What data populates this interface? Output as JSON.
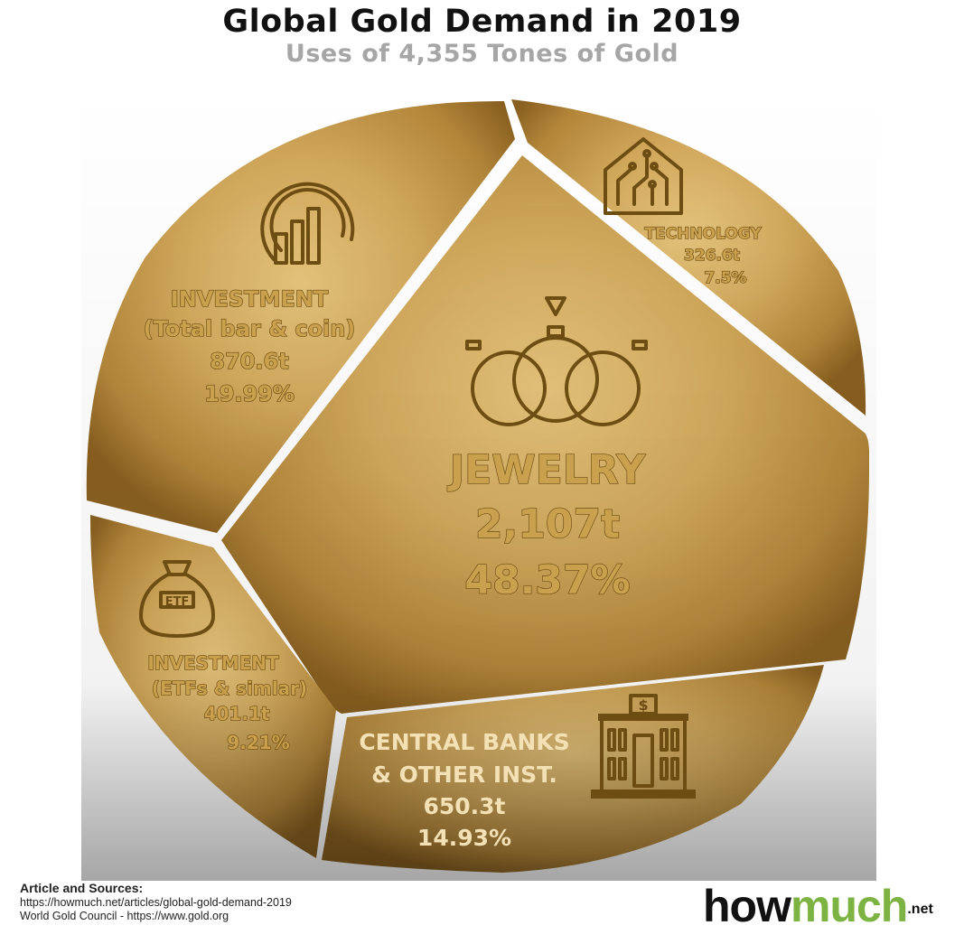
{
  "header": {
    "title": "Global Gold Demand in 2019",
    "subtitle": "Uses of 4,355 Tones of Gold"
  },
  "chart_data": {
    "type": "pie",
    "total": "4,355",
    "unit": "Tones",
    "slices": [
      {
        "id": "jewelry",
        "lines": [
          "JEWELRY",
          "2,107t",
          "48.37%"
        ],
        "tonnes": 2107,
        "percent": 48.37,
        "icon": "rings-icon"
      },
      {
        "id": "investment-bar-coin",
        "lines": [
          "INVESTMENT",
          "(Total bar & coin)",
          "870.6t",
          "19.99%"
        ],
        "tonnes": 870.6,
        "percent": 19.99,
        "icon": "growth-chart-icon"
      },
      {
        "id": "central-banks",
        "lines": [
          "CENTRAL BANKS",
          "& OTHER INST.",
          "650.3t",
          "14.93%"
        ],
        "tonnes": 650.3,
        "percent": 14.93,
        "icon": "bank-building-icon"
      },
      {
        "id": "investment-etf",
        "lines": [
          "INVESTMENT",
          "(ETFs & simlar)",
          "401.1t",
          "9.21%"
        ],
        "tonnes": 401.1,
        "percent": 9.21,
        "icon": "money-bag-icon",
        "icon_text": "ETF"
      },
      {
        "id": "technology",
        "lines": [
          "TECHNOLOGY",
          "326.6t",
          "7.5%"
        ],
        "tonnes": 326.6,
        "percent": 7.5,
        "icon": "circuit-house-icon"
      }
    ],
    "colors": {
      "gold_light": "#d9b76a",
      "gold_mid": "#b8893a",
      "gold_dark": "#7a5418",
      "text_fill": "#c9a04e",
      "text_stroke": "#6e4d12"
    }
  },
  "footer": {
    "sources_heading": "Article and Sources:",
    "source_1": "https://howmuch.net/articles/global-gold-demand-2019",
    "source_2": "World Gold Council - https://www.gold.org",
    "logo_how": "how",
    "logo_much": "much",
    "logo_net": ".net"
  }
}
